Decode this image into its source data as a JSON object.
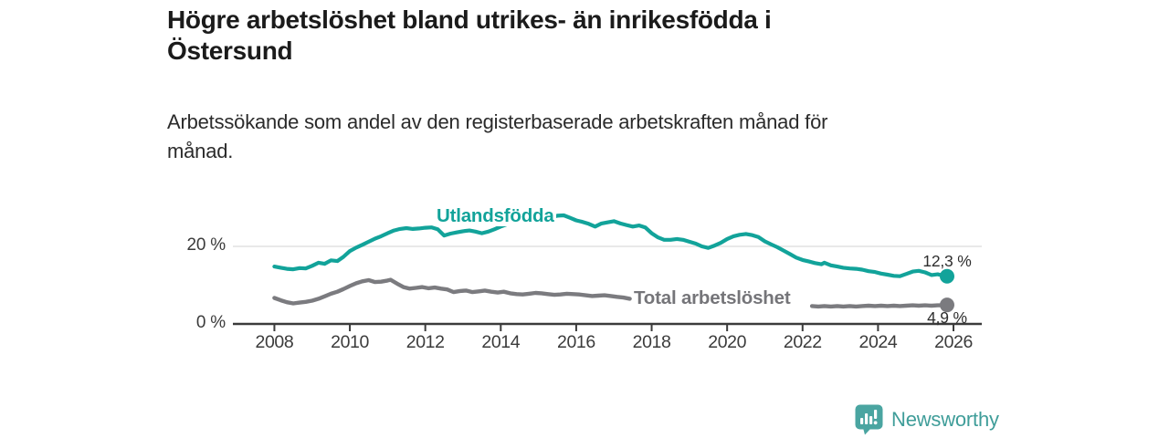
{
  "header": {
    "title": "Högre arbetslöshet bland utrikes- än inrikesfödda i Östersund",
    "subtitle": "Arbetssökande som andel av den registerbaserade arbetskraften månad för månad."
  },
  "branding": {
    "name": "Newsworthy",
    "icon": "newsworthy-chart-bubble-icon",
    "icon_color": "#4aa5a1",
    "text_color": "#3f9d99"
  },
  "chart_data": {
    "type": "line",
    "title": "Högre arbetslöshet bland utrikes- än inrikesfödda i Östersund",
    "subtitle": "Arbetssökande som andel av den registerbaserade arbetskraften månad för månad.",
    "unit": "%",
    "grid": "horizontal-only",
    "legend_position": "inline-labels",
    "colors": {
      "axis": "#3b3b3b",
      "gridline": "#dcdcdc"
    },
    "x_axis": {
      "range": [
        2006.9,
        2026.75
      ],
      "ticks": [
        {
          "value": 2008,
          "label": "2008"
        },
        {
          "value": 2010,
          "label": "2010"
        },
        {
          "value": 2012,
          "label": "2012"
        },
        {
          "value": 2014,
          "label": "2014"
        },
        {
          "value": 2016,
          "label": "2016"
        },
        {
          "value": 2018,
          "label": "2018"
        },
        {
          "value": 2020,
          "label": "2020"
        },
        {
          "value": 2022,
          "label": "2022"
        },
        {
          "value": 2024,
          "label": "2024"
        },
        {
          "value": 2026,
          "label": "2026"
        }
      ]
    },
    "y_axis": {
      "range": [
        0,
        29.4
      ],
      "gridline_values": [
        20
      ],
      "ticks": [
        {
          "value": 0,
          "label": "0 %"
        },
        {
          "value": 20,
          "label": "20 %"
        }
      ]
    },
    "series": [
      {
        "name": "Utlandsfödda",
        "color": "#12a39a",
        "end_value": 12.3,
        "end_label": "12,3 %",
        "points": [
          [
            2008.0,
            14.8
          ],
          [
            2008.17,
            14.5
          ],
          [
            2008.33,
            14.2
          ],
          [
            2008.5,
            14.1
          ],
          [
            2008.67,
            14.4
          ],
          [
            2008.83,
            14.3
          ],
          [
            2009.0,
            15.0
          ],
          [
            2009.17,
            15.8
          ],
          [
            2009.33,
            15.5
          ],
          [
            2009.5,
            16.4
          ],
          [
            2009.67,
            16.2
          ],
          [
            2009.83,
            17.3
          ],
          [
            2010.0,
            18.8
          ],
          [
            2010.17,
            19.7
          ],
          [
            2010.33,
            20.4
          ],
          [
            2010.5,
            21.2
          ],
          [
            2010.67,
            22.0
          ],
          [
            2010.83,
            22.6
          ],
          [
            2011.0,
            23.4
          ],
          [
            2011.17,
            24.1
          ],
          [
            2011.33,
            24.5
          ],
          [
            2011.5,
            24.7
          ],
          [
            2011.67,
            24.5
          ],
          [
            2011.83,
            24.6
          ],
          [
            2012.0,
            24.8
          ],
          [
            2012.17,
            24.9
          ],
          [
            2012.33,
            24.4
          ],
          [
            2012.5,
            22.8
          ],
          [
            2012.67,
            23.3
          ],
          [
            2012.83,
            23.6
          ],
          [
            2013.0,
            23.9
          ],
          [
            2013.17,
            24.1
          ],
          [
            2013.33,
            23.8
          ],
          [
            2013.5,
            23.4
          ],
          [
            2013.67,
            23.8
          ],
          [
            2013.83,
            24.4
          ],
          [
            2014.0,
            25.1
          ],
          [
            2014.17,
            25.7
          ],
          [
            2014.33,
            26.2
          ],
          [
            2014.5,
            26.7
          ],
          [
            2014.67,
            27.0
          ],
          [
            2014.83,
            27.2
          ],
          [
            2015.0,
            27.5
          ],
          [
            2015.17,
            27.4
          ],
          [
            2015.33,
            27.5
          ],
          [
            2015.5,
            27.9
          ],
          [
            2015.67,
            28.0
          ],
          [
            2015.83,
            27.4
          ],
          [
            2016.0,
            26.7
          ],
          [
            2016.17,
            26.3
          ],
          [
            2016.33,
            25.8
          ],
          [
            2016.5,
            25.1
          ],
          [
            2016.67,
            25.9
          ],
          [
            2016.83,
            26.2
          ],
          [
            2017.0,
            26.5
          ],
          [
            2017.17,
            25.9
          ],
          [
            2017.33,
            25.5
          ],
          [
            2017.5,
            25.1
          ],
          [
            2017.67,
            25.4
          ],
          [
            2017.83,
            24.9
          ],
          [
            2018.0,
            23.4
          ],
          [
            2018.17,
            22.3
          ],
          [
            2018.33,
            21.7
          ],
          [
            2018.5,
            21.7
          ],
          [
            2018.67,
            21.9
          ],
          [
            2018.83,
            21.7
          ],
          [
            2019.0,
            21.2
          ],
          [
            2019.17,
            20.7
          ],
          [
            2019.33,
            20.0
          ],
          [
            2019.5,
            19.6
          ],
          [
            2019.67,
            20.2
          ],
          [
            2019.83,
            20.9
          ],
          [
            2020.0,
            21.9
          ],
          [
            2020.17,
            22.6
          ],
          [
            2020.33,
            23.0
          ],
          [
            2020.5,
            23.2
          ],
          [
            2020.67,
            22.9
          ],
          [
            2020.83,
            22.4
          ],
          [
            2021.0,
            21.3
          ],
          [
            2021.17,
            20.5
          ],
          [
            2021.33,
            19.8
          ],
          [
            2021.5,
            18.9
          ],
          [
            2021.67,
            18.0
          ],
          [
            2021.83,
            17.1
          ],
          [
            2022.0,
            16.5
          ],
          [
            2022.17,
            16.1
          ],
          [
            2022.33,
            15.7
          ],
          [
            2022.5,
            15.4
          ],
          [
            2022.58,
            15.8
          ],
          [
            2022.75,
            15.1
          ],
          [
            2022.92,
            14.8
          ],
          [
            2023.08,
            14.5
          ],
          [
            2023.25,
            14.3
          ],
          [
            2023.42,
            14.2
          ],
          [
            2023.58,
            14.0
          ],
          [
            2023.75,
            13.6
          ],
          [
            2023.92,
            13.4
          ],
          [
            2024.08,
            13.0
          ],
          [
            2024.25,
            12.7
          ],
          [
            2024.42,
            12.4
          ],
          [
            2024.58,
            12.3
          ],
          [
            2024.75,
            12.9
          ],
          [
            2024.92,
            13.5
          ],
          [
            2025.08,
            13.7
          ],
          [
            2025.25,
            13.3
          ],
          [
            2025.42,
            12.6
          ],
          [
            2025.58,
            12.8
          ],
          [
            2025.75,
            12.4
          ],
          [
            2025.83,
            12.3
          ]
        ]
      },
      {
        "name": "Total arbetslöshet",
        "color": "#7b7b7f",
        "end_value": 4.9,
        "end_label": "4,9 %",
        "segments": [
          [
            [
              2008.0,
              6.7
            ],
            [
              2008.17,
              6.1
            ],
            [
              2008.33,
              5.6
            ],
            [
              2008.5,
              5.3
            ],
            [
              2008.67,
              5.5
            ],
            [
              2008.83,
              5.7
            ],
            [
              2009.0,
              6.0
            ],
            [
              2009.17,
              6.5
            ],
            [
              2009.33,
              7.1
            ],
            [
              2009.5,
              7.8
            ],
            [
              2009.67,
              8.3
            ],
            [
              2009.83,
              9.0
            ],
            [
              2010.0,
              9.8
            ],
            [
              2010.17,
              10.5
            ],
            [
              2010.33,
              11.0
            ],
            [
              2010.5,
              11.3
            ],
            [
              2010.67,
              10.8
            ],
            [
              2010.83,
              10.9
            ],
            [
              2011.0,
              11.2
            ],
            [
              2011.08,
              11.4
            ],
            [
              2011.25,
              10.4
            ],
            [
              2011.42,
              9.5
            ],
            [
              2011.58,
              9.1
            ],
            [
              2011.75,
              9.3
            ],
            [
              2011.92,
              9.5
            ],
            [
              2012.08,
              9.2
            ],
            [
              2012.25,
              9.4
            ],
            [
              2012.42,
              9.1
            ],
            [
              2012.58,
              8.9
            ],
            [
              2012.75,
              8.2
            ],
            [
              2012.92,
              8.5
            ],
            [
              2013.08,
              8.6
            ],
            [
              2013.25,
              8.2
            ],
            [
              2013.42,
              8.4
            ],
            [
              2013.58,
              8.6
            ],
            [
              2013.75,
              8.3
            ],
            [
              2013.92,
              8.1
            ],
            [
              2014.08,
              8.3
            ],
            [
              2014.25,
              7.9
            ],
            [
              2014.42,
              7.7
            ],
            [
              2014.58,
              7.6
            ],
            [
              2014.75,
              7.8
            ],
            [
              2014.92,
              8.0
            ],
            [
              2015.08,
              7.9
            ],
            [
              2015.25,
              7.7
            ],
            [
              2015.42,
              7.5
            ],
            [
              2015.58,
              7.6
            ],
            [
              2015.75,
              7.8
            ],
            [
              2015.92,
              7.7
            ],
            [
              2016.08,
              7.6
            ],
            [
              2016.25,
              7.4
            ],
            [
              2016.42,
              7.2
            ],
            [
              2016.58,
              7.3
            ],
            [
              2016.75,
              7.4
            ],
            [
              2016.92,
              7.2
            ],
            [
              2017.08,
              7.0
            ],
            [
              2017.25,
              6.8
            ],
            [
              2017.42,
              6.5
            ]
          ],
          [
            [
              2022.25,
              4.6
            ],
            [
              2022.42,
              4.5
            ],
            [
              2022.58,
              4.6
            ],
            [
              2022.75,
              4.5
            ],
            [
              2022.92,
              4.6
            ],
            [
              2023.08,
              4.5
            ],
            [
              2023.25,
              4.6
            ],
            [
              2023.42,
              4.5
            ],
            [
              2023.58,
              4.6
            ],
            [
              2023.75,
              4.7
            ],
            [
              2023.92,
              4.6
            ],
            [
              2024.08,
              4.7
            ],
            [
              2024.25,
              4.6
            ],
            [
              2024.42,
              4.7
            ],
            [
              2024.58,
              4.6
            ],
            [
              2024.75,
              4.7
            ],
            [
              2024.92,
              4.8
            ],
            [
              2025.08,
              4.7
            ],
            [
              2025.25,
              4.8
            ],
            [
              2025.42,
              4.7
            ],
            [
              2025.58,
              4.8
            ],
            [
              2025.75,
              4.8
            ],
            [
              2025.83,
              4.9
            ]
          ]
        ]
      }
    ]
  }
}
